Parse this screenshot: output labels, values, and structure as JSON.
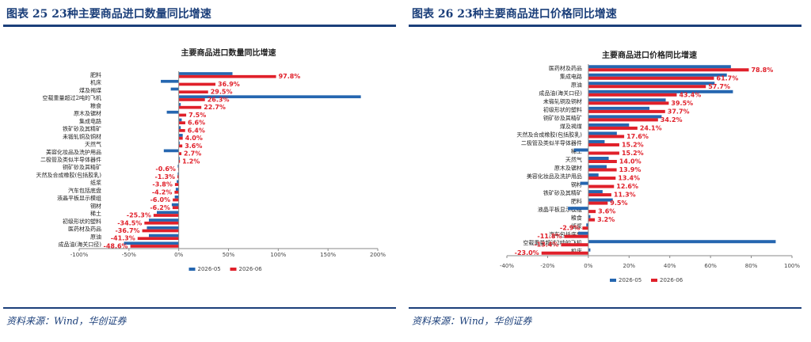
{
  "chart_data": [
    {
      "type": "barh",
      "caption": "图表 25 23种主要商品进口数量同比增速",
      "title": "主要商品进口数量同比增速",
      "source": "资料来源：Wind，华创证券",
      "categories": [
        "肥料",
        "机床",
        "煤及褐煤",
        "空载重量超过2吨的飞机",
        "粮食",
        "原木及锯材",
        "集成电路",
        "铁矿砂及其精矿",
        "未锻轧铜及铜材",
        "天然气",
        "美容化妆品及洗护用品",
        "二极管及类似半导体器件",
        "铜矿砂及其精矿",
        "天然及合成橡胶(包括胶乳)",
        "纸浆",
        "汽车包括底盘",
        "液晶平板显示模组",
        "钢材",
        "稀土",
        "初级形状的塑料",
        "医药材及药品",
        "原油",
        "成品油(海关口径)"
      ],
      "series": [
        {
          "name": "2026-05",
          "color": "#2566b0",
          "values": [
            54,
            -18,
            -8,
            183,
            2,
            -12,
            3,
            2,
            4,
            1,
            -15,
            1,
            -1,
            -1,
            -2,
            -3,
            -4,
            -7,
            -22,
            -30,
            -32,
            -30,
            -55
          ]
        },
        {
          "name": "2026-06",
          "color": "#e0202a",
          "values": [
            97.8,
            36.9,
            29.5,
            26.3,
            22.7,
            7.5,
            6.6,
            6.4,
            4.0,
            3.6,
            2.7,
            1.2,
            -0.6,
            -1.3,
            -3.8,
            -4.2,
            -6.0,
            -6.2,
            -25.3,
            -34.5,
            -36.7,
            -41.3,
            -48.6
          ],
          "value_labels": [
            "97.8%",
            "36.9%",
            "29.5%",
            "26.3%",
            "22.7%",
            "7.5%",
            "6.6%",
            "6.4%",
            "4.0%",
            "3.6%",
            "2.7%",
            "1.2%",
            "-0.6%",
            "-1.3%",
            "-3.8%",
            "-4.2%",
            "-6.0%",
            "-6.2%",
            "-25.3%",
            "-34.5%",
            "-36.7%",
            "-41.3%",
            "-48.6%"
          ]
        }
      ],
      "xlim": [
        -100,
        200
      ],
      "xticks": [
        {
          "value": -100,
          "label": "-100%"
        },
        {
          "value": -50,
          "label": "-50%"
        },
        {
          "value": 0,
          "label": "0%"
        },
        {
          "value": 50,
          "label": "50%"
        },
        {
          "value": 100,
          "label": "100%"
        },
        {
          "value": 150,
          "label": "150%"
        },
        {
          "value": 200,
          "label": "200%"
        }
      ],
      "legend": "bottom"
    },
    {
      "type": "barh",
      "caption": "图表 26 23种主要商品进口价格同比增速",
      "title": "主要商品进口价格同比增速",
      "source": "资料来源：Wind，华创证券",
      "categories": [
        "医药材及药品",
        "集成电路",
        "原油",
        "成品油(海关口径)",
        "未锻轧铜及铜材",
        "初级形状的塑料",
        "铜矿砂及其精矿",
        "煤及褐煤",
        "天然及合成橡胶(包括胶乳)",
        "二极管及类似半导体器件",
        "稀土",
        "天然气",
        "原木及锯材",
        "美容化妆品及洗护用品",
        "钢材",
        "铁矿砂及其精矿",
        "肥料",
        "液晶平板显示模组",
        "粮食",
        "纸浆",
        "汽车包括底盘",
        "空载重量超过2吨的飞机",
        "机床"
      ],
      "series": [
        {
          "name": "2026-05",
          "color": "#2566b0",
          "values": [
            70,
            68,
            62,
            71,
            38,
            30,
            36,
            20,
            14,
            8,
            -7,
            10,
            9,
            5,
            -4,
            7,
            12,
            -10,
            1,
            -1,
            -5,
            92,
            1
          ]
        },
        {
          "name": "2026-06",
          "color": "#e0202a",
          "values": [
            78.8,
            61.7,
            57.7,
            43.4,
            39.5,
            37.7,
            34.2,
            24.1,
            17.6,
            15.2,
            15.2,
            14.0,
            13.9,
            13.4,
            12.6,
            11.3,
            9.5,
            3.6,
            3.2,
            -2.9,
            -11.8,
            -13.4,
            -23.0
          ],
          "value_labels": [
            "78.8%",
            "61.7%",
            "57.7%",
            "43.4%",
            "39.5%",
            "37.7%",
            "34.2%",
            "24.1%",
            "17.6%",
            "15.2%",
            "15.2%",
            "14.0%",
            "13.9%",
            "13.4%",
            "12.6%",
            "11.3%",
            "9.5%",
            "3.6%",
            "3.2%",
            "-2.9%",
            "-11.8%",
            "-13.4%",
            "-23.0%"
          ]
        }
      ],
      "xlim": [
        -40,
        100
      ],
      "xticks": [
        {
          "value": -40,
          "label": "-40%"
        },
        {
          "value": -20,
          "label": "-20%"
        },
        {
          "value": 0,
          "label": "0%"
        },
        {
          "value": 20,
          "label": "20%"
        },
        {
          "value": 40,
          "label": "40%"
        },
        {
          "value": 60,
          "label": "60%"
        },
        {
          "value": 80,
          "label": "80%"
        },
        {
          "value": 100,
          "label": "100%"
        }
      ],
      "legend": "bottom"
    }
  ]
}
